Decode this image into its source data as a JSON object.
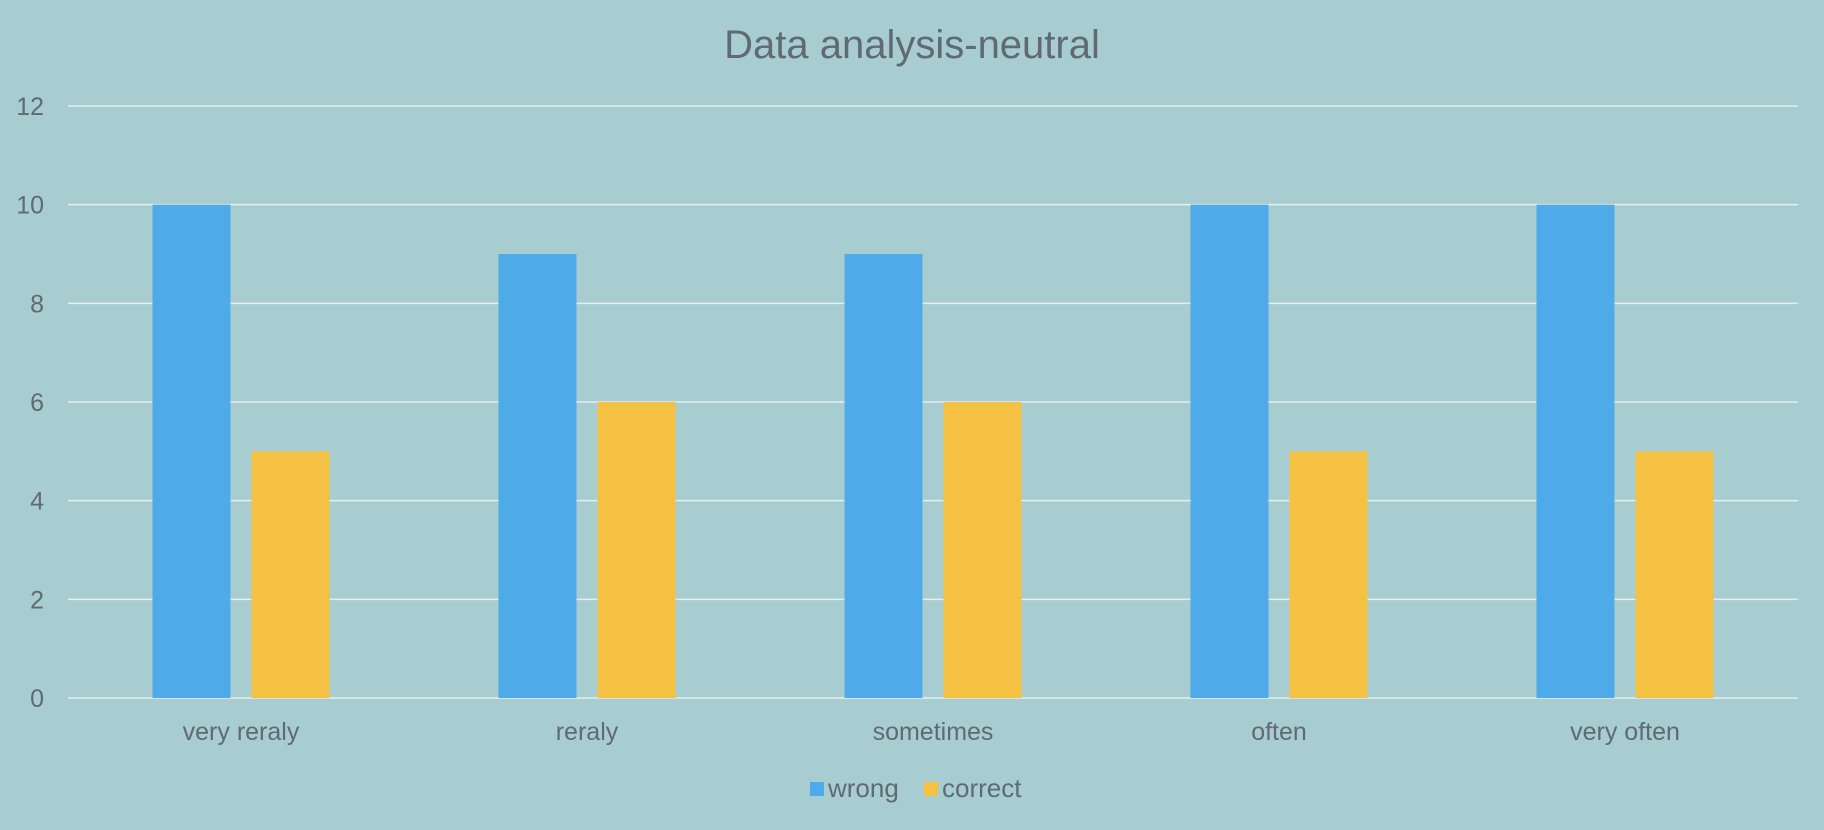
{
  "chart_data": {
    "type": "bar",
    "title": "Data analysis-neutral",
    "categories": [
      "very reraly",
      "reraly",
      "sometimes",
      "often",
      "very often"
    ],
    "series": [
      {
        "name": "wrong",
        "values": [
          10,
          9,
          9,
          10,
          10
        ],
        "color": "#4eaae8"
      },
      {
        "name": "correct",
        "values": [
          5,
          6,
          6,
          5,
          5
        ],
        "color": "#f5c142"
      }
    ],
    "ylim": [
      0,
      12
    ],
    "yticks": [
      0,
      2,
      4,
      6,
      8,
      10,
      12
    ],
    "grid": true,
    "legend": "bottom",
    "background": "#a8cdd0",
    "gridColor": "#e4eff0",
    "textColor": "#5f6a72"
  }
}
